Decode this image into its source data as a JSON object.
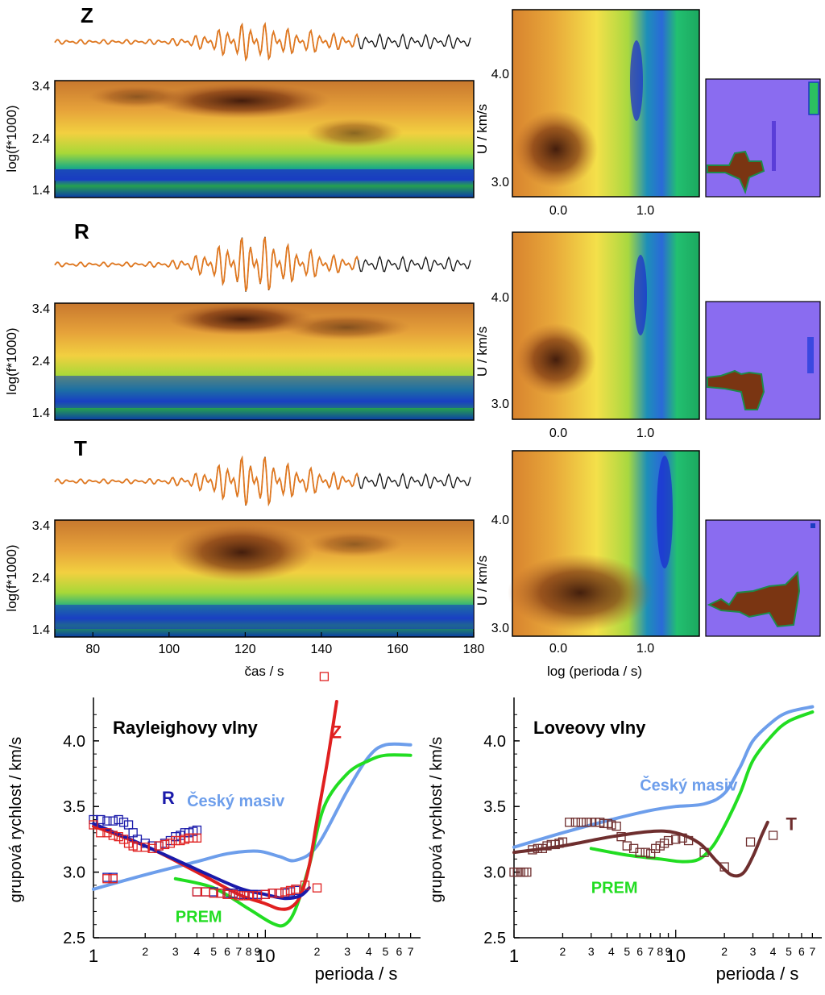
{
  "top_panels": {
    "ylabel": "log(f*1000)",
    "y_ticks": [
      "3.4",
      "2.4",
      "1.4"
    ],
    "components": [
      "Z",
      "R",
      "T"
    ],
    "time_axis": {
      "label": "čas / s",
      "ticks": [
        80,
        100,
        120,
        140,
        160,
        180
      ],
      "range": [
        70,
        180
      ]
    },
    "group_velocity_axis": {
      "ylabel": "U / km/s",
      "y_ticks": [
        "4.0",
        "3.0"
      ],
      "x_ticks": [
        "0.0",
        "1.0"
      ],
      "xlabel": "log (perioda / s)",
      "x_range": [
        -0.5,
        1.6
      ],
      "y_range": [
        2.8,
        4.7
      ]
    }
  },
  "chart_data": [
    {
      "type": "line",
      "title": "Rayleighovy vlny",
      "xlabel": "perioda / s",
      "ylabel": "grupová rychlost / km/s",
      "x_scale": "log",
      "xlim": [
        1,
        80
      ],
      "ylim": [
        2.5,
        4.3
      ],
      "y_ticks": [
        "2.5",
        "3.0",
        "3.5",
        "4.0"
      ],
      "x_tick_labels": [
        {
          "v": 1,
          "t": "1",
          "major": true
        },
        {
          "v": 2,
          "t": "2"
        },
        {
          "v": 3,
          "t": "3"
        },
        {
          "v": 4,
          "t": "4"
        },
        {
          "v": 5,
          "t": "5"
        },
        {
          "v": 6,
          "t": "6"
        },
        {
          "v": 7,
          "t": "7"
        },
        {
          "v": 8,
          "t": "8"
        },
        {
          "v": 9,
          "t": "9"
        },
        {
          "v": 10,
          "t": "10",
          "major": true
        },
        {
          "v": 20,
          "t": "2"
        },
        {
          "v": 30,
          "t": "3"
        },
        {
          "v": 40,
          "t": "4"
        },
        {
          "v": 50,
          "t": "5"
        },
        {
          "v": 60,
          "t": "6"
        },
        {
          "v": 70,
          "t": "7"
        }
      ],
      "series": [
        {
          "name": "Český masiv",
          "color": "#6d9eeb",
          "x": [
            1,
            2,
            4,
            6,
            9,
            12,
            15,
            20,
            30,
            40,
            50,
            70
          ],
          "y": [
            2.87,
            2.98,
            3.08,
            3.14,
            3.16,
            3.12,
            3.09,
            3.2,
            3.62,
            3.88,
            3.97,
            3.97
          ]
        },
        {
          "name": "PREM",
          "color": "#22dd22",
          "x": [
            3,
            5,
            8,
            11,
            13,
            15,
            18,
            22,
            30,
            40,
            50,
            70
          ],
          "y": [
            2.95,
            2.88,
            2.72,
            2.61,
            2.6,
            2.72,
            3.05,
            3.5,
            3.75,
            3.85,
            3.89,
            3.89
          ]
        },
        {
          "name": "Z",
          "color": "#e02020",
          "x": [
            1,
            2,
            4,
            7,
            10,
            12,
            14,
            16,
            18,
            20,
            23,
            26
          ],
          "y": [
            3.35,
            3.2,
            3.0,
            2.83,
            2.76,
            2.72,
            2.73,
            2.82,
            3.05,
            3.4,
            3.85,
            4.3
          ]
        },
        {
          "name": "R",
          "color": "#1a1aaa",
          "x": [
            1,
            2,
            4,
            7,
            10,
            13,
            16,
            18
          ],
          "y": [
            3.37,
            3.2,
            3.02,
            2.88,
            2.83,
            2.8,
            2.82,
            2.88
          ]
        }
      ],
      "points": [
        {
          "name": "R",
          "color": "#1a1aaa",
          "x": [
            1,
            1.1,
            1.2,
            1.3,
            1.4,
            1.5,
            1.6,
            1.7,
            1.8,
            2.0,
            2.2,
            2.4,
            2.6,
            2.8,
            3.0,
            3.2,
            3.4,
            3.6,
            3.8,
            4.0,
            1.2,
            1.3,
            4.0,
            4.5,
            5.0,
            5.5,
            6.0,
            6.5,
            7.0,
            7.5,
            8.0,
            8.5,
            9.0,
            10,
            11,
            12,
            13,
            14,
            15
          ],
          "y": [
            3.4,
            3.4,
            3.39,
            3.39,
            3.4,
            3.38,
            3.36,
            3.3,
            3.25,
            3.22,
            3.2,
            3.2,
            3.22,
            3.24,
            3.27,
            3.28,
            3.3,
            3.3,
            3.31,
            3.32,
            2.96,
            2.96,
            2.85,
            2.85,
            2.85,
            2.84,
            2.84,
            2.84,
            2.83,
            2.83,
            2.83,
            2.83,
            2.83,
            2.83,
            2.84,
            2.84,
            2.84,
            2.85,
            2.86
          ]
        },
        {
          "name": "Z",
          "color": "#e02020",
          "x": [
            1,
            1.1,
            1.2,
            1.3,
            1.4,
            1.5,
            1.6,
            1.7,
            1.8,
            2.0,
            2.2,
            2.4,
            2.6,
            2.8,
            3.0,
            3.2,
            3.4,
            3.6,
            3.8,
            4.0,
            1.2,
            1.3,
            4.0,
            4.5,
            5.0,
            5.5,
            6.0,
            6.5,
            7.0,
            7.5,
            8.0,
            8.5,
            9.0,
            10,
            11,
            12,
            13,
            14,
            15,
            17,
            20,
            22
          ],
          "y": [
            3.36,
            3.3,
            3.3,
            3.28,
            3.27,
            3.25,
            3.22,
            3.2,
            3.19,
            3.19,
            3.18,
            3.2,
            3.21,
            3.22,
            3.24,
            3.24,
            3.25,
            3.26,
            3.26,
            3.26,
            2.95,
            2.95,
            2.85,
            2.85,
            2.84,
            2.84,
            2.83,
            2.83,
            2.82,
            2.82,
            2.82,
            2.82,
            2.82,
            2.83,
            2.84,
            2.84,
            2.85,
            2.86,
            2.87,
            2.9,
            2.88,
            4.49
          ]
        }
      ],
      "annotations": [
        {
          "text": "Z",
          "color": "#e02020",
          "x": 24,
          "y": 4.02
        },
        {
          "text": "R",
          "color": "#1a1aaa",
          "x": 2.5,
          "y": 3.52
        },
        {
          "text": "Český masiv",
          "color": "#6d9eeb",
          "x": 3.5,
          "y": 3.5
        },
        {
          "text": "PREM",
          "color": "#22dd22",
          "x": 3.0,
          "y": 2.62
        }
      ]
    },
    {
      "type": "line",
      "title": "Loveovy vlny",
      "xlabel": "perioda / s",
      "ylabel": "grupová rychlost / km/s",
      "x_scale": "log",
      "xlim": [
        1,
        80
      ],
      "ylim": [
        2.5,
        4.3
      ],
      "y_ticks": [
        "2.5",
        "3.0",
        "3.5",
        "4.0"
      ],
      "x_tick_labels": [
        {
          "v": 1,
          "t": "1",
          "major": true
        },
        {
          "v": 2,
          "t": "2"
        },
        {
          "v": 3,
          "t": "3"
        },
        {
          "v": 4,
          "t": "4"
        },
        {
          "v": 5,
          "t": "5"
        },
        {
          "v": 6,
          "t": "6"
        },
        {
          "v": 7,
          "t": "7"
        },
        {
          "v": 8,
          "t": "8"
        },
        {
          "v": 9,
          "t": "9"
        },
        {
          "v": 10,
          "t": "10",
          "major": true
        },
        {
          "v": 20,
          "t": "2"
        },
        {
          "v": 30,
          "t": "3"
        },
        {
          "v": 40,
          "t": "4"
        },
        {
          "v": 50,
          "t": "5"
        },
        {
          "v": 60,
          "t": "6"
        },
        {
          "v": 70,
          "t": "7"
        }
      ],
      "series": [
        {
          "name": "Český masiv",
          "color": "#6d9eeb",
          "x": [
            1,
            2,
            4,
            7,
            10,
            15,
            20,
            25,
            30,
            40,
            50,
            70
          ],
          "y": [
            3.19,
            3.3,
            3.4,
            3.47,
            3.5,
            3.52,
            3.6,
            3.8,
            4.0,
            4.15,
            4.22,
            4.26
          ]
        },
        {
          "name": "PREM",
          "color": "#22dd22",
          "x": [
            3,
            5,
            8,
            11,
            14,
            17,
            20,
            25,
            30,
            40,
            50,
            70
          ],
          "y": [
            3.18,
            3.13,
            3.1,
            3.08,
            3.1,
            3.2,
            3.35,
            3.6,
            3.85,
            4.05,
            4.15,
            4.22
          ]
        },
        {
          "name": "T",
          "color": "#6e2e2e",
          "x": [
            1,
            2,
            4,
            7,
            10,
            14,
            18,
            22,
            26,
            30,
            34,
            37
          ],
          "y": [
            3.15,
            3.2,
            3.27,
            3.31,
            3.3,
            3.22,
            3.08,
            2.98,
            2.99,
            3.12,
            3.28,
            3.38
          ]
        }
      ],
      "points": [
        {
          "name": "T",
          "color": "#6e2e2e",
          "x": [
            1,
            1.05,
            1.1,
            1.15,
            1.2,
            1.3,
            1.4,
            1.5,
            1.6,
            1.7,
            1.8,
            1.9,
            2.0,
            2.2,
            2.4,
            2.6,
            2.8,
            3.0,
            3.2,
            3.4,
            3.6,
            3.8,
            4.0,
            4.3,
            4.6,
            5.0,
            5.5,
            6.0,
            6.5,
            7.0,
            7.5,
            8.0,
            8.5,
            9.0,
            10,
            11,
            12,
            15,
            20,
            29,
            40
          ],
          "y": [
            3.0,
            3.0,
            3.0,
            3.0,
            3.0,
            3.17,
            3.18,
            3.18,
            3.2,
            3.21,
            3.21,
            3.22,
            3.23,
            3.38,
            3.38,
            3.38,
            3.38,
            3.38,
            3.38,
            3.38,
            3.37,
            3.37,
            3.36,
            3.35,
            3.27,
            3.2,
            3.18,
            3.15,
            3.15,
            3.14,
            3.18,
            3.2,
            3.22,
            3.24,
            3.25,
            3.26,
            3.24,
            3.15,
            3.04,
            3.23,
            3.28
          ]
        }
      ],
      "annotations": [
        {
          "text": "T",
          "color": "#6e2e2e",
          "x": 48,
          "y": 3.32
        },
        {
          "text": "Český masiv",
          "color": "#6d9eeb",
          "x": 6,
          "y": 3.62
        },
        {
          "text": "PREM",
          "color": "#22dd22",
          "x": 3.0,
          "y": 2.84
        }
      ]
    }
  ]
}
